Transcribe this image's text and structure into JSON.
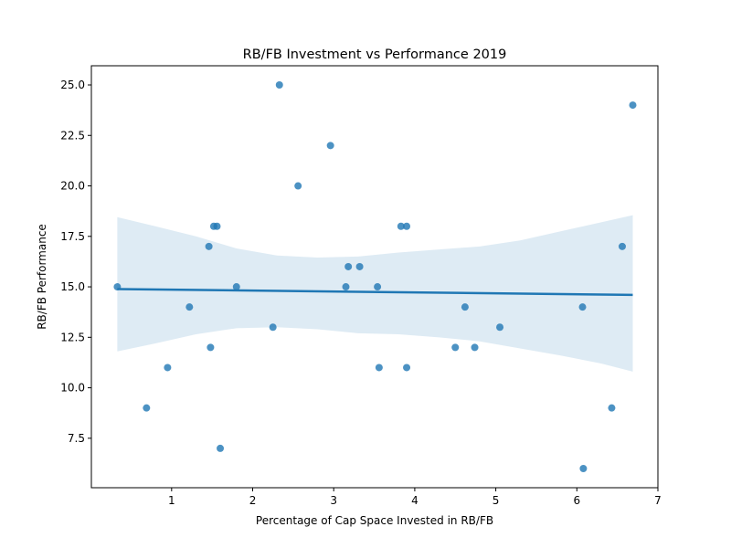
{
  "chart_data": {
    "type": "scatter",
    "title": "RB/FB Investment vs Performance 2019",
    "xlabel": "Percentage of Cap Space Invested in RB/FB",
    "ylabel": "RB/FB Performance",
    "xlim": [
      0.01,
      7.0
    ],
    "ylim": [
      5.05,
      25.95
    ],
    "xticks": [
      1,
      2,
      3,
      4,
      5,
      6,
      7
    ],
    "xtick_labels": [
      "1",
      "2",
      "3",
      "4",
      "5",
      "6",
      "7"
    ],
    "yticks": [
      7.5,
      10.0,
      12.5,
      15.0,
      17.5,
      20.0,
      22.5,
      25.0
    ],
    "ytick_labels": [
      "7.5",
      "10.0",
      "12.5",
      "15.0",
      "17.5",
      "20.0",
      "22.5",
      "25.0"
    ],
    "grid": false,
    "colors": {
      "points": "#1f77b4",
      "regression_line": "#1f77b4",
      "confidence_band": "#1f77b4"
    },
    "points": [
      {
        "x": 0.33,
        "y": 15
      },
      {
        "x": 0.69,
        "y": 9
      },
      {
        "x": 0.95,
        "y": 11
      },
      {
        "x": 1.22,
        "y": 14
      },
      {
        "x": 1.46,
        "y": 17
      },
      {
        "x": 1.48,
        "y": 12
      },
      {
        "x": 1.52,
        "y": 18
      },
      {
        "x": 1.56,
        "y": 18
      },
      {
        "x": 1.6,
        "y": 7
      },
      {
        "x": 1.8,
        "y": 15
      },
      {
        "x": 2.25,
        "y": 13
      },
      {
        "x": 2.33,
        "y": 25
      },
      {
        "x": 2.56,
        "y": 20
      },
      {
        "x": 2.96,
        "y": 22
      },
      {
        "x": 3.15,
        "y": 15
      },
      {
        "x": 3.18,
        "y": 16
      },
      {
        "x": 3.32,
        "y": 16
      },
      {
        "x": 3.54,
        "y": 15
      },
      {
        "x": 3.56,
        "y": 11
      },
      {
        "x": 3.83,
        "y": 18
      },
      {
        "x": 3.9,
        "y": 18
      },
      {
        "x": 3.9,
        "y": 11
      },
      {
        "x": 4.5,
        "y": 12
      },
      {
        "x": 4.62,
        "y": 14
      },
      {
        "x": 4.74,
        "y": 12
      },
      {
        "x": 5.05,
        "y": 13
      },
      {
        "x": 6.07,
        "y": 14
      },
      {
        "x": 6.08,
        "y": 6
      },
      {
        "x": 6.43,
        "y": 9
      },
      {
        "x": 6.56,
        "y": 17
      },
      {
        "x": 6.69,
        "y": 24
      }
    ],
    "regression": {
      "x": [
        0.33,
        6.69
      ],
      "y": [
        14.89,
        14.6
      ]
    },
    "confidence_band": {
      "x": [
        0.33,
        0.8,
        1.3,
        1.8,
        2.3,
        2.8,
        3.3,
        3.8,
        4.3,
        4.8,
        5.3,
        5.8,
        6.3,
        6.69
      ],
      "upper": [
        18.45,
        18.0,
        17.5,
        16.9,
        16.55,
        16.45,
        16.5,
        16.7,
        16.85,
        17.0,
        17.3,
        17.75,
        18.2,
        18.55
      ],
      "lower": [
        11.8,
        12.2,
        12.65,
        12.95,
        13.0,
        12.9,
        12.7,
        12.65,
        12.5,
        12.3,
        11.95,
        11.6,
        11.2,
        10.8
      ]
    }
  }
}
